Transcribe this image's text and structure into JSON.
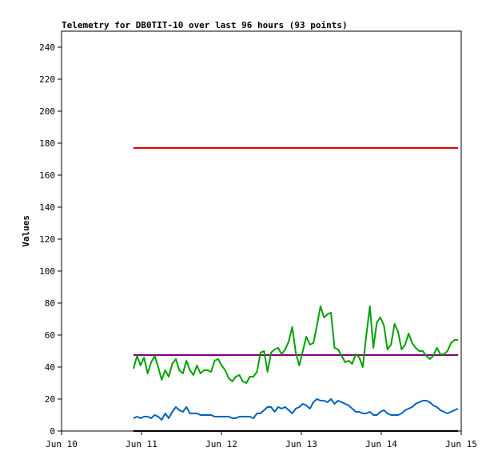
{
  "chart_data": {
    "type": "line",
    "title": "Telemetry for DB0TIT-10 over last 96 hours (93 points)",
    "xlabel": "",
    "ylabel": "Values",
    "xlim": [
      "Jun 10",
      "Jun 15"
    ],
    "ylim": [
      0,
      250
    ],
    "x_ticks": [
      "Jun 10",
      "Jun 11",
      "Jun 12",
      "Jun 13",
      "Jun 14",
      "Jun 15"
    ],
    "y_ticks": [
      0,
      20,
      40,
      60,
      80,
      100,
      120,
      140,
      160,
      180,
      200,
      220,
      240
    ],
    "grid": false,
    "legend": "none",
    "x_start": 0.9,
    "x_end": 4.96,
    "series": [
      {
        "color": "#e00000",
        "values": [
          177,
          177
        ]
      },
      {
        "color": "#800080",
        "values": [
          47.5,
          47.5
        ]
      },
      {
        "color": "#00a000",
        "values": [
          39,
          47,
          41,
          46,
          36,
          43,
          47,
          40,
          32,
          38,
          34,
          42,
          45,
          38,
          36,
          44,
          38,
          35,
          41,
          36,
          38,
          38,
          37,
          44,
          45,
          41,
          38,
          33,
          31,
          34,
          35,
          31,
          30,
          34,
          34,
          37,
          49,
          50,
          37,
          49,
          51,
          52,
          48,
          51,
          56,
          65,
          49,
          41,
          50,
          59,
          54,
          55,
          66,
          78,
          71,
          73,
          74,
          52,
          51,
          47,
          43,
          44,
          42,
          48,
          46,
          40,
          60,
          78,
          52,
          68,
          71,
          66,
          51,
          54,
          67,
          62,
          51,
          54,
          61,
          55,
          52,
          50,
          50,
          47,
          45,
          47,
          52,
          48,
          48,
          50,
          55,
          57,
          57
        ]
      },
      {
        "color": "#0060c0",
        "values": [
          8,
          9,
          8,
          9,
          9,
          8,
          10,
          9,
          7,
          11,
          8,
          12,
          15,
          13,
          12,
          15,
          11,
          11,
          11,
          10,
          10,
          10,
          10,
          9,
          9,
          9,
          9,
          9,
          8,
          8,
          9,
          9,
          9,
          9,
          8,
          11,
          11,
          13,
          15,
          15,
          12,
          15,
          14,
          15,
          13,
          11,
          14,
          15,
          17,
          16,
          14,
          18,
          20,
          19,
          19,
          18,
          20,
          17,
          19,
          18,
          17,
          16,
          14,
          12,
          12,
          11,
          11,
          12,
          10,
          10,
          12,
          13,
          11,
          10,
          10,
          10,
          11,
          13,
          14,
          15,
          17,
          18,
          19,
          19,
          18,
          16,
          15,
          13,
          12,
          11,
          12,
          13,
          14
        ]
      }
    ]
  }
}
